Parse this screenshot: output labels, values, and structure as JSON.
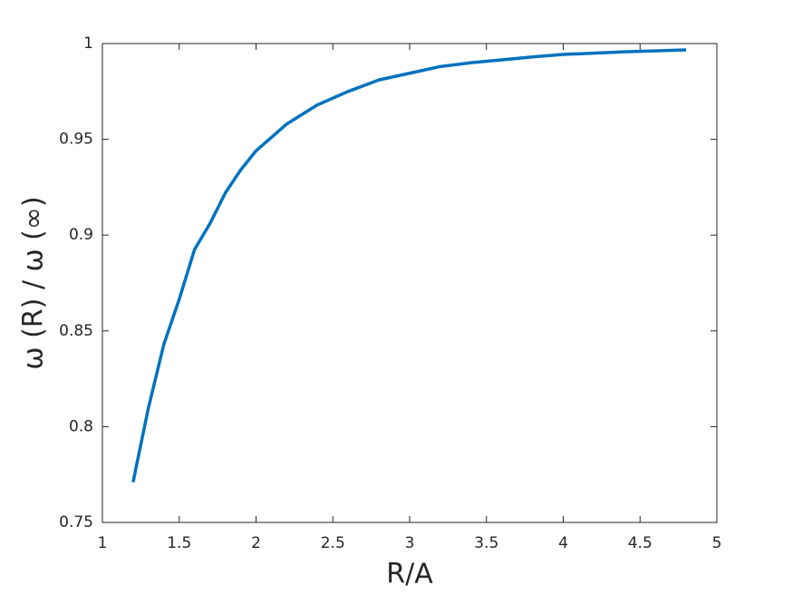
{
  "chart_data": {
    "type": "line",
    "xlabel": "R/A",
    "ylabel": "ω (R) / ω (∞)",
    "x": [
      1.2,
      1.22,
      1.3,
      1.4,
      1.5,
      1.6,
      1.7,
      1.8,
      1.9,
      2.0,
      2.2,
      2.4,
      2.6,
      2.8,
      3.0,
      3.2,
      3.4,
      3.6,
      3.8,
      4.0,
      4.4,
      4.8
    ],
    "series": [
      {
        "color": "#0072bd",
        "values": [
          0.771,
          0.779,
          0.81,
          0.843,
          0.8665,
          0.8925,
          0.906,
          0.922,
          0.934,
          0.944,
          0.958,
          0.968,
          0.975,
          0.981,
          0.9845,
          0.988,
          0.99,
          0.9915,
          0.993,
          0.9943,
          0.9957,
          0.9967
        ]
      }
    ],
    "xlim": [
      1,
      5
    ],
    "xticks": [
      1,
      1.5,
      2,
      2.5,
      3,
      3.5,
      4,
      4.5,
      5
    ],
    "ylim": [
      0.75,
      1
    ],
    "yticks": [
      0.75,
      0.8,
      0.85,
      0.9,
      0.95,
      1
    ]
  }
}
